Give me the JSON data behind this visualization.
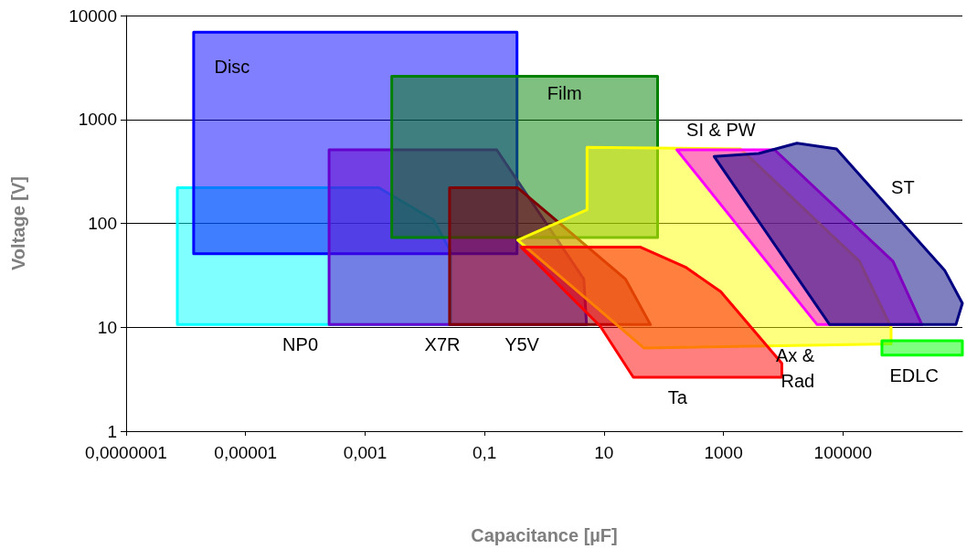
{
  "chart_data": {
    "type": "area",
    "xlabel": "Capacitance [µF]",
    "ylabel": "Voltage [V]",
    "log": "xy",
    "grid": "y",
    "legend": false,
    "xlim": [
      1e-07,
      10000000.0
    ],
    "ylim": [
      1,
      10000
    ],
    "xticks": [
      {
        "value": 1e-07,
        "label": "0,0000001"
      },
      {
        "value": 1e-05,
        "label": "0,00001"
      },
      {
        "value": 0.001,
        "label": "0,001"
      },
      {
        "value": 0.1,
        "label": "0,1"
      },
      10,
      1000,
      100000
    ],
    "yticks": [
      1,
      10,
      100,
      1000,
      10000
    ],
    "series": [
      {
        "name": "NP0",
        "color": "#00ffff",
        "x": [
          7.2e-07,
          0.0017,
          0.014,
          0.027,
          0.027,
          7.2e-07
        ],
        "values": [
          220,
          220,
          108,
          54,
          10.6,
          10.6
        ]
      },
      {
        "name": "Disc",
        "color": "#0000ff",
        "x": [
          1.35e-06,
          0.35,
          0.35,
          1.35e-06
        ],
        "values": [
          6900,
          6900,
          51,
          51
        ]
      },
      {
        "name": "X7R",
        "color": "#6600cc",
        "x": [
          0.00025,
          0.16,
          4.6,
          5.1,
          0.00025
        ],
        "values": [
          510,
          510,
          29,
          10.6,
          10.6
        ]
      },
      {
        "name": "Film",
        "color": "#008000",
        "x": [
          0.0028,
          79,
          79,
          0.0028
        ],
        "values": [
          2600,
          2600,
          73,
          73
        ]
      },
      {
        "name": "Y5V",
        "color": "#800000",
        "x": [
          0.026,
          0.36,
          23,
          60,
          0.026
        ],
        "values": [
          220,
          220,
          29,
          10.6,
          10.6
        ]
      },
      {
        "name": "Ax & Rad",
        "color": "#ffff00",
        "x": [
          5.2,
          1950,
          190000,
          640000,
          640000,
          47,
          0.36,
          5.2
        ],
        "values": [
          540,
          520,
          43,
          10,
          6.9,
          6.3,
          69,
          135
        ]
      },
      {
        "name": "Ta",
        "color": "#ff0000",
        "x": [
          0.41,
          41,
          230,
          900,
          9500,
          9500,
          31,
          8.7
        ],
        "values": [
          59,
          59,
          38,
          22,
          4.5,
          3.3,
          3.3,
          10.2
        ]
      },
      {
        "name": "SI & PW",
        "color": "#ff00ff",
        "x": [
          166,
          7200,
          690000,
          2100000,
          37000
        ],
        "values": [
          510,
          510,
          43,
          10.6,
          10.6
        ]
      },
      {
        "name": "ST",
        "color": "#000080",
        "x": [
          700,
          3900,
          17000,
          78000,
          5100000,
          10000000,
          7800000,
          60000
        ],
        "values": [
          440,
          470,
          590,
          520,
          35,
          17,
          10.6,
          10.6
        ]
      },
      {
        "name": "EDLC",
        "color": "#00ff00",
        "x": [
          450000,
          10000000,
          10000000,
          450000
        ],
        "values": [
          7.4,
          7.4,
          5.4,
          5.4
        ]
      }
    ]
  }
}
